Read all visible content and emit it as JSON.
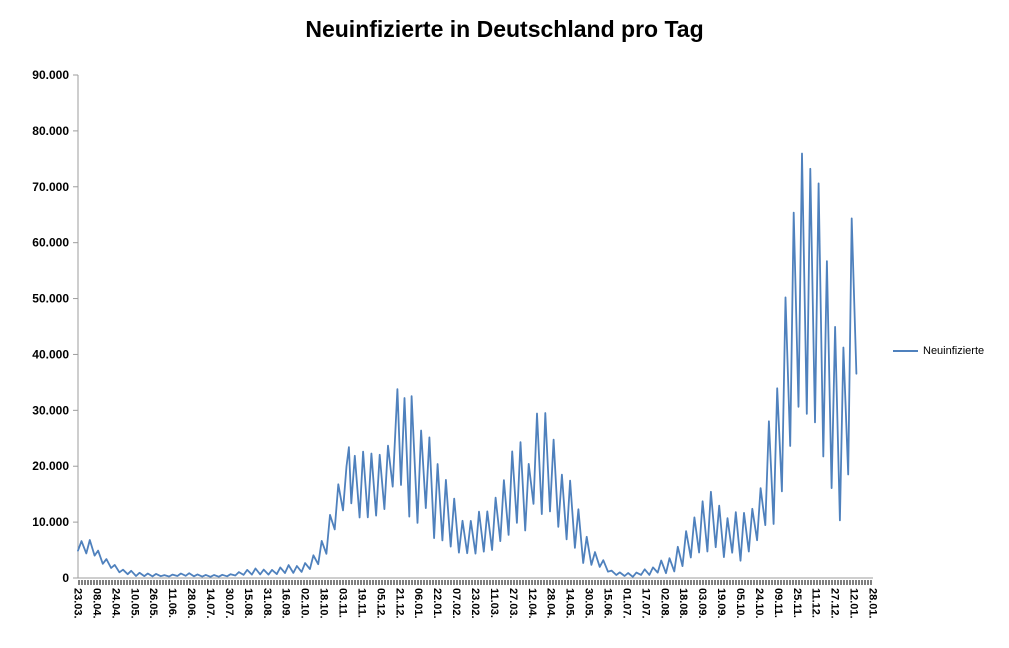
{
  "chart_data": {
    "type": "line",
    "title": "Neuinfizierte in Deutschland pro Tag",
    "series_color": "#4F81BD",
    "axis_color": "#9d9d9d",
    "tick_band_color": "#808080",
    "grid": false,
    "legend_position": "right",
    "ylim": [
      0,
      90000
    ],
    "y_tick_step": 10000,
    "y_tick_labels": [
      "0",
      "10.000",
      "20.000",
      "30.000",
      "40.000",
      "50.000",
      "60.000",
      "70.000",
      "80.000",
      "90.000"
    ],
    "x_label_interval_days": 16,
    "x_total_days": 672,
    "x_tick_labels": [
      "23.03.",
      "08.04.",
      "24.04.",
      "10.05.",
      "26.05.",
      "11.06.",
      "28.06.",
      "14.07.",
      "30.07.",
      "15.08.",
      "31.08.",
      "16.09.",
      "02.10.",
      "18.10.",
      "03.11.",
      "19.11.",
      "05.12.",
      "21.12.",
      "06.01.",
      "22.01.",
      "07.02.",
      "23.02.",
      "11.03.",
      "27.03.",
      "12.04.",
      "28.04.",
      "14.05.",
      "30.05.",
      "15.06.",
      "01.07.",
      "17.07.",
      "02.08.",
      "18.08.",
      "03.09.",
      "19.09.",
      "05.10.",
      "24.10.",
      "09.11.",
      "25.11.",
      "11.12.",
      "27.12.",
      "12.01.",
      "28.01."
    ],
    "series": [
      {
        "name": "Neuinfizierte",
        "points": [
          [
            0,
            4900
          ],
          [
            3,
            6600
          ],
          [
            7,
            4400
          ],
          [
            10,
            6800
          ],
          [
            14,
            4000
          ],
          [
            17,
            4900
          ],
          [
            21,
            2540
          ],
          [
            24,
            3380
          ],
          [
            28,
            1790
          ],
          [
            31,
            2350
          ],
          [
            35,
            1020
          ],
          [
            38,
            1480
          ],
          [
            42,
            680
          ],
          [
            45,
            1280
          ],
          [
            49,
            360
          ],
          [
            52,
            930
          ],
          [
            56,
            340
          ],
          [
            59,
            800
          ],
          [
            63,
            290
          ],
          [
            66,
            740
          ],
          [
            70,
            330
          ],
          [
            73,
            510
          ],
          [
            77,
            260
          ],
          [
            80,
            600
          ],
          [
            84,
            350
          ],
          [
            87,
            800
          ],
          [
            91,
            400
          ],
          [
            94,
            850
          ],
          [
            98,
            300
          ],
          [
            101,
            650
          ],
          [
            105,
            250
          ],
          [
            108,
            550
          ],
          [
            112,
            210
          ],
          [
            115,
            530
          ],
          [
            119,
            240
          ],
          [
            122,
            580
          ],
          [
            126,
            300
          ],
          [
            129,
            680
          ],
          [
            133,
            450
          ],
          [
            136,
            1050
          ],
          [
            140,
            550
          ],
          [
            143,
            1450
          ],
          [
            147,
            600
          ],
          [
            150,
            1700
          ],
          [
            154,
            650
          ],
          [
            157,
            1510
          ],
          [
            161,
            610
          ],
          [
            164,
            1450
          ],
          [
            168,
            700
          ],
          [
            171,
            1900
          ],
          [
            175,
            900
          ],
          [
            178,
            2300
          ],
          [
            182,
            920
          ],
          [
            185,
            2150
          ],
          [
            189,
            1100
          ],
          [
            192,
            2670
          ],
          [
            196,
            1600
          ],
          [
            199,
            4060
          ],
          [
            203,
            2470
          ],
          [
            206,
            6640
          ],
          [
            210,
            4330
          ],
          [
            213,
            11290
          ],
          [
            217,
            8690
          ],
          [
            220,
            16770
          ],
          [
            224,
            12100
          ],
          [
            227,
            19990
          ],
          [
            229,
            23400
          ],
          [
            231,
            13360
          ],
          [
            234,
            21870
          ],
          [
            238,
            10820
          ],
          [
            241,
            22610
          ],
          [
            245,
            10860
          ],
          [
            248,
            22270
          ],
          [
            252,
            11170
          ],
          [
            255,
            22050
          ],
          [
            259,
            12330
          ],
          [
            262,
            23680
          ],
          [
            266,
            16360
          ],
          [
            270,
            33780
          ],
          [
            273,
            16640
          ],
          [
            276,
            32200
          ],
          [
            280,
            10980
          ],
          [
            282,
            32550
          ],
          [
            287,
            9850
          ],
          [
            290,
            26390
          ],
          [
            294,
            12500
          ],
          [
            297,
            25160
          ],
          [
            301,
            7140
          ],
          [
            304,
            20400
          ],
          [
            308,
            6730
          ],
          [
            311,
            17550
          ],
          [
            315,
            5610
          ],
          [
            318,
            14210
          ],
          [
            322,
            4540
          ],
          [
            325,
            10240
          ],
          [
            329,
            4430
          ],
          [
            332,
            10210
          ],
          [
            336,
            4370
          ],
          [
            339,
            11870
          ],
          [
            343,
            4730
          ],
          [
            346,
            11910
          ],
          [
            350,
            5010
          ],
          [
            353,
            14360
          ],
          [
            357,
            6600
          ],
          [
            360,
            17500
          ],
          [
            364,
            7710
          ],
          [
            367,
            22660
          ],
          [
            371,
            9870
          ],
          [
            374,
            24300
          ],
          [
            378,
            8500
          ],
          [
            381,
            20410
          ],
          [
            385,
            13250
          ],
          [
            388,
            29430
          ],
          [
            392,
            11440
          ],
          [
            395,
            29520
          ],
          [
            399,
            11910
          ],
          [
            402,
            24740
          ],
          [
            406,
            9160
          ],
          [
            409,
            18480
          ],
          [
            413,
            6920
          ],
          [
            416,
            17420
          ],
          [
            420,
            5410
          ],
          [
            423,
            12300
          ],
          [
            427,
            2680
          ],
          [
            430,
            7380
          ],
          [
            434,
            2350
          ],
          [
            437,
            4640
          ],
          [
            441,
            1980
          ],
          [
            444,
            3190
          ],
          [
            448,
            1120
          ],
          [
            451,
            1330
          ],
          [
            455,
            530
          ],
          [
            458,
            1010
          ],
          [
            462,
            350
          ],
          [
            465,
            890
          ],
          [
            469,
            210
          ],
          [
            472,
            970
          ],
          [
            476,
            550
          ],
          [
            479,
            1550
          ],
          [
            483,
            550
          ],
          [
            486,
            1890
          ],
          [
            490,
            960
          ],
          [
            493,
            3140
          ],
          [
            497,
            850
          ],
          [
            500,
            3540
          ],
          [
            504,
            1180
          ],
          [
            507,
            5580
          ],
          [
            511,
            2130
          ],
          [
            514,
            8400
          ],
          [
            518,
            3670
          ],
          [
            521,
            10840
          ],
          [
            525,
            4560
          ],
          [
            528,
            13720
          ],
          [
            532,
            4750
          ],
          [
            535,
            15430
          ],
          [
            539,
            5510
          ],
          [
            542,
            12930
          ],
          [
            546,
            3740
          ],
          [
            549,
            10700
          ],
          [
            553,
            4530
          ],
          [
            556,
            11780
          ],
          [
            560,
            3090
          ],
          [
            563,
            11640
          ],
          [
            567,
            4750
          ],
          [
            570,
            12380
          ],
          [
            574,
            6770
          ],
          [
            577,
            16080
          ],
          [
            581,
            9460
          ],
          [
            584,
            28040
          ],
          [
            588,
            9660
          ],
          [
            591,
            33950
          ],
          [
            595,
            15510
          ],
          [
            598,
            50200
          ],
          [
            602,
            23610
          ],
          [
            605,
            65370
          ],
          [
            609,
            30640
          ],
          [
            612,
            75960
          ],
          [
            616,
            29360
          ],
          [
            619,
            73210
          ],
          [
            623,
            27840
          ],
          [
            626,
            70610
          ],
          [
            630,
            21740
          ],
          [
            633,
            56680
          ],
          [
            637,
            16090
          ],
          [
            640,
            44930
          ],
          [
            644,
            10300
          ],
          [
            647,
            41240
          ],
          [
            651,
            18520
          ],
          [
            654,
            64340
          ],
          [
            658,
            36550
          ]
        ]
      }
    ]
  }
}
